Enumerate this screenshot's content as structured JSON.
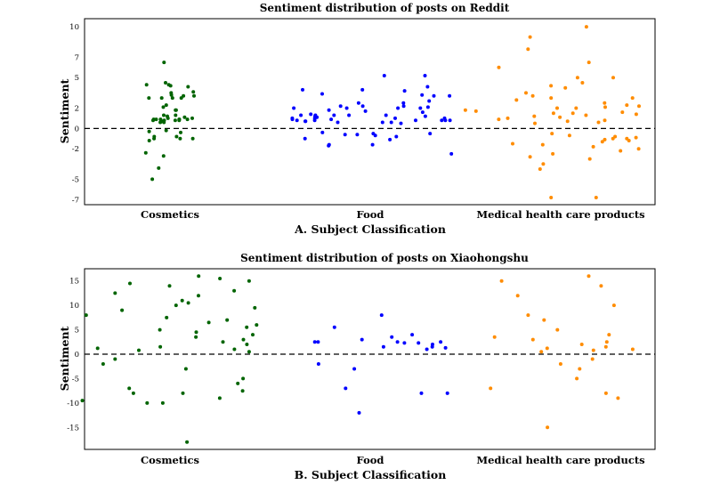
{
  "chart_data": [
    {
      "type": "scatter",
      "title": "Sentiment distribution of posts on Reddit",
      "xlabel": "A. Subject Classification",
      "ylabel": "Sentiment",
      "categories": [
        "Cosmetics",
        "Food",
        "Medical health care products"
      ],
      "colors": [
        "#006400",
        "#0000ff",
        "#ff8c00"
      ],
      "ylim": [
        -7.5,
        10.8
      ],
      "y_ticks": [
        -7,
        -5,
        -2,
        0,
        2,
        5,
        7,
        10
      ],
      "reference_line": {
        "y": 0,
        "style": "dashed"
      },
      "series": [
        {
          "category": "Cosmetics",
          "points": [
            1.8,
            3.2,
            3.3,
            0.8,
            0.9,
            0.7,
            6.5,
            1.1,
            0.9,
            4.3,
            3.5,
            3.0,
            4.3,
            -1.0,
            3.0,
            1.8,
            4.1,
            4.2,
            3.6,
            2.3,
            1.3,
            -2.7,
            -0.8,
            -1.0,
            4.5,
            3.0,
            0.9,
            0.9,
            0.6,
            1.2,
            1.0,
            -5.0,
            0.9,
            3.2,
            2.1,
            1.3,
            -0.8,
            0.9,
            -0.2,
            -0.3,
            3.0,
            -0.4,
            -1.0,
            0.8,
            -2.4,
            -3.9,
            -1.2,
            0.6,
            0.8,
            0.8,
            1.0
          ]
        },
        {
          "category": "Food",
          "points": [
            0.6,
            1.0,
            2.5,
            1.3,
            -1.6,
            0.8,
            3.2,
            2.5,
            1.2,
            0.8,
            -0.6,
            3.8,
            1.1,
            1.3,
            0.6,
            2.0,
            2.1,
            3.7,
            4.1,
            1.0,
            1.3,
            0.5,
            -0.6,
            3.2,
            0.8,
            1.6,
            -1.0,
            -0.8,
            5.2,
            1.7,
            5.2,
            0.8,
            3.4,
            1.0,
            -0.7,
            1.3,
            2.2,
            2.7,
            0.7,
            0.8,
            -1.6,
            1.3,
            2.2,
            -1.1,
            -0.5,
            0.9,
            -1.7,
            0.9,
            2.0,
            -0.4,
            0.8,
            1.2,
            -2.5,
            1.8,
            3.8,
            0.7,
            1.4,
            2.0,
            -0.5,
            1.0,
            0.6,
            2.0,
            2.2,
            3.3
          ]
        },
        {
          "category": "Medical health care products",
          "points": [
            10.0,
            9.0,
            7.8,
            6.5,
            6.0,
            5.0,
            5.0,
            4.5,
            4.2,
            4.0,
            3.5,
            3.2,
            3.0,
            3.0,
            2.8,
            2.5,
            2.3,
            2.2,
            2.1,
            2.0,
            2.0,
            1.8,
            1.7,
            1.6,
            1.5,
            1.5,
            1.4,
            1.3,
            1.2,
            1.1,
            1.0,
            0.9,
            0.8,
            0.7,
            0.6,
            0.5,
            -0.5,
            -0.7,
            -0.8,
            -0.9,
            -1.0,
            -1.0,
            -1.1,
            -1.2,
            -1.3,
            -1.5,
            -1.6,
            -1.8,
            -2.0,
            -2.2,
            -2.5,
            -2.8,
            -3.0,
            -3.5,
            -4.0,
            -6.8,
            -6.8
          ]
        }
      ]
    },
    {
      "type": "scatter",
      "title": "Sentiment distribution of posts on Xiaohongshu",
      "xlabel": "B. Subject Classification",
      "ylabel": "Sentiment",
      "categories": [
        "Cosmetics",
        "Food",
        "Medical health care products"
      ],
      "colors": [
        "#006400",
        "#0000ff",
        "#ff8c00"
      ],
      "ylim": [
        -19.5,
        17.5
      ],
      "y_ticks": [
        -15,
        -10,
        -5,
        0,
        5,
        10,
        15
      ],
      "reference_line": {
        "y": 0,
        "style": "dashed"
      },
      "series": [
        {
          "category": "Cosmetics",
          "points": [
            16,
            15.5,
            15,
            14.5,
            14,
            13,
            12.5,
            12,
            11,
            10.5,
            10,
            9.5,
            9,
            8,
            7.5,
            7,
            6.5,
            6,
            5.5,
            5,
            4.5,
            4,
            3.5,
            3,
            2.5,
            2,
            1.5,
            1.2,
            1,
            0.8,
            0.5,
            -1,
            -2,
            -3,
            -5,
            -6,
            -7,
            -7.5,
            -8,
            -8,
            -9,
            -9.5,
            -10,
            -10,
            -18
          ]
        },
        {
          "category": "Food",
          "points": [
            2.5,
            1.3,
            1.0,
            4.0,
            2.5,
            1.5,
            2.3,
            8.0,
            2.5,
            -7.0,
            -12.0,
            1.5,
            2.5,
            -3.0,
            3.0,
            2.0,
            2.3,
            -2.0,
            -8.0,
            -8.0,
            3.5,
            5.5
          ]
        },
        {
          "category": "Medical health care products",
          "points": [
            16.0,
            15.0,
            14.0,
            12.0,
            10.0,
            8.0,
            7.0,
            5.0,
            4.0,
            3.5,
            3.0,
            2.5,
            2.0,
            1.5,
            1.2,
            1.0,
            0.8,
            0.5,
            -1.0,
            -2.0,
            -3.0,
            -5.0,
            -7.0,
            -8.0,
            -9.0,
            -15.0
          ]
        }
      ]
    }
  ]
}
